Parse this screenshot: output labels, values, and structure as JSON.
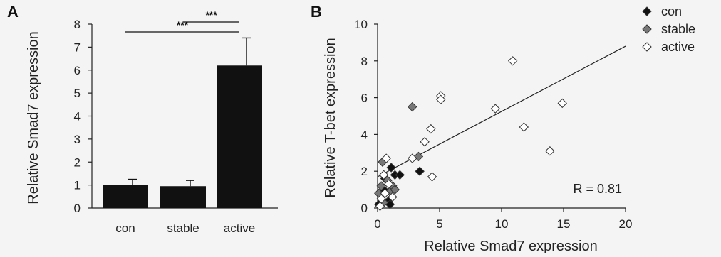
{
  "chart_data": [
    {
      "type": "bar",
      "panel_label": "A",
      "categories": [
        "con",
        "stable",
        "active"
      ],
      "values": [
        1.0,
        0.95,
        6.2
      ],
      "errors": [
        0.25,
        0.25,
        1.2
      ],
      "ylabel": "Relative Smad7 expression",
      "xlabel": "",
      "ylim": [
        0,
        8
      ],
      "yticks": [
        "0",
        "1",
        "2",
        "3",
        "4",
        "5",
        "6",
        "7",
        "8"
      ],
      "bar_color": "#111111",
      "significance": [
        {
          "from": "con",
          "to": "active",
          "label": "***"
        },
        {
          "from": "stable",
          "to": "active",
          "label": "***"
        }
      ]
    },
    {
      "type": "scatter",
      "panel_label": "B",
      "xlabel": "Relative Smad7 expression",
      "ylabel": "Relative T-bet expression",
      "xlim": [
        0,
        20
      ],
      "ylim": [
        0,
        10
      ],
      "xticks": [
        "0",
        "5",
        "10",
        "15",
        "20"
      ],
      "yticks": [
        "0",
        "2",
        "4",
        "6",
        "8",
        "10"
      ],
      "legend_position": "top-right",
      "series": [
        {
          "name": "con",
          "color": "#111111",
          "points": [
            [
              0.1,
              0.2
            ],
            [
              0.3,
              0.6
            ],
            [
              0.5,
              1.0
            ],
            [
              0.6,
              1.6
            ],
            [
              0.9,
              0.4
            ],
            [
              1.0,
              0.2
            ],
            [
              1.1,
              2.2
            ],
            [
              1.4,
              1.8
            ],
            [
              1.8,
              1.8
            ],
            [
              3.4,
              2.0
            ]
          ]
        },
        {
          "name": "stable",
          "color": "#777777",
          "points": [
            [
              0.1,
              0.8
            ],
            [
              0.3,
              1.2
            ],
            [
              0.4,
              2.5
            ],
            [
              0.5,
              0.3
            ],
            [
              0.8,
              1.5
            ],
            [
              1.0,
              0.9
            ],
            [
              1.2,
              1.2
            ],
            [
              1.4,
              1.0
            ],
            [
              2.8,
              5.5
            ],
            [
              3.3,
              2.8
            ]
          ]
        },
        {
          "name": "active",
          "color": "#ffffff",
          "points": [
            [
              0.2,
              0.1
            ],
            [
              0.3,
              0.5
            ],
            [
              0.5,
              1.8
            ],
            [
              0.6,
              0.8
            ],
            [
              0.7,
              2.7
            ],
            [
              0.9,
              1.3
            ],
            [
              1.2,
              0.6
            ],
            [
              2.8,
              2.7
            ],
            [
              3.8,
              3.6
            ],
            [
              4.3,
              4.3
            ],
            [
              4.4,
              1.7
            ],
            [
              5.1,
              6.1
            ],
            [
              5.1,
              5.9
            ],
            [
              9.5,
              5.4
            ],
            [
              10.9,
              8.0
            ],
            [
              11.8,
              4.4
            ],
            [
              13.9,
              3.1
            ],
            [
              14.9,
              5.7
            ]
          ]
        }
      ],
      "trendline": [
        [
          0,
          1.7
        ],
        [
          20,
          8.8
        ]
      ],
      "annotation": "R = 0.81"
    }
  ]
}
